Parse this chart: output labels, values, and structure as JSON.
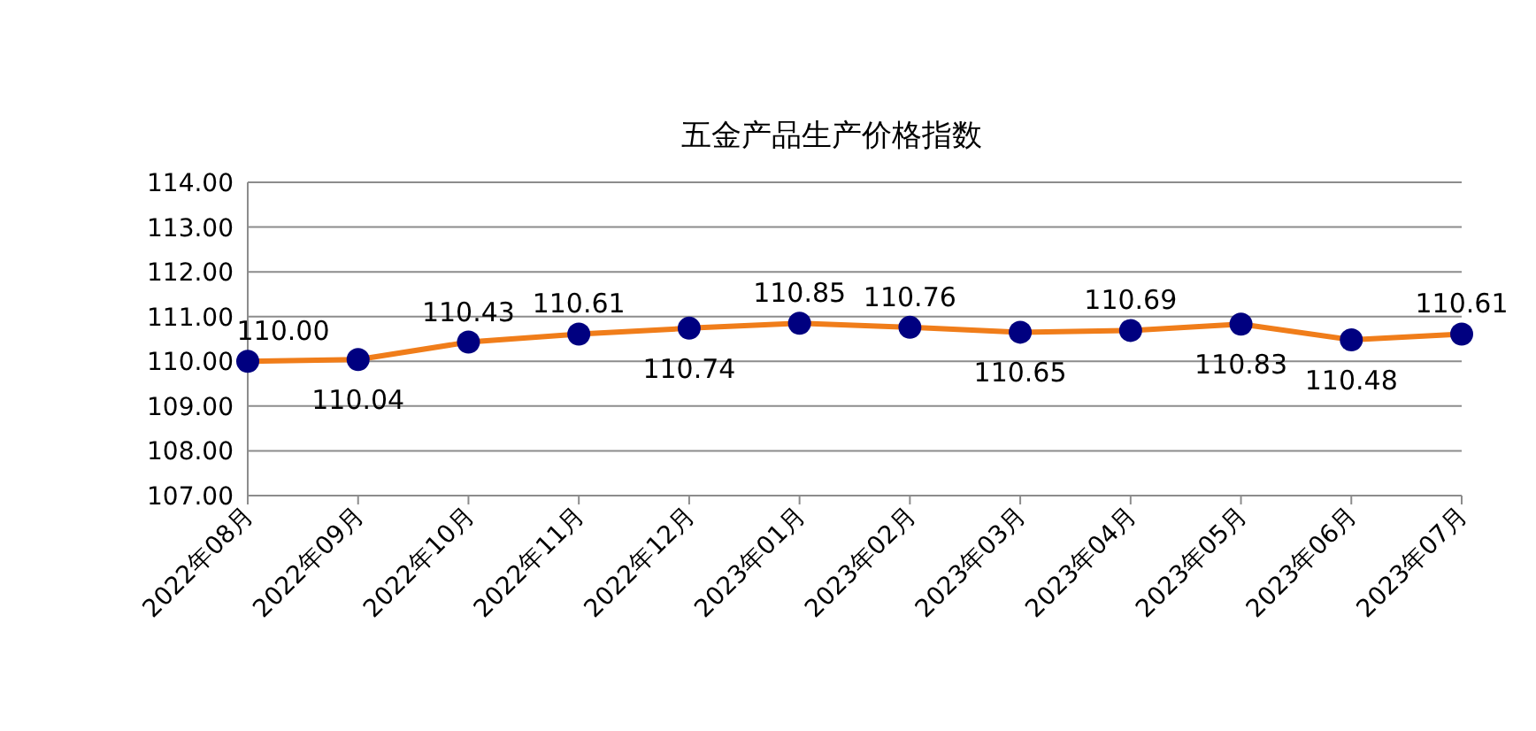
{
  "chart_data": {
    "type": "line",
    "title": "五金产品生产价格指数",
    "categories": [
      "2022年08月",
      "2022年09月",
      "2022年10月",
      "2022年11月",
      "2022年12月",
      "2023年01月",
      "2023年02月",
      "2023年03月",
      "2023年04月",
      "2023年05月",
      "2023年06月",
      "2023年07月"
    ],
    "series": [
      {
        "color": "#f07d1a",
        "colors": [
          "#000080",
          "#000080",
          "#000080",
          "#000080",
          "#000080",
          "#000080",
          "#000080",
          "#000080",
          "#000080",
          "#000080",
          "#000080",
          "#000080"
        ],
        "values": [
          110.0,
          110.04,
          110.43,
          110.61,
          110.74,
          110.85,
          110.76,
          110.65,
          110.69,
          110.83,
          110.48,
          110.61
        ],
        "value_labels": [
          "110.00",
          "110.04",
          "110.43",
          "110.61",
          "110.74",
          "110.85",
          "110.76",
          "110.65",
          "110.69",
          "110.83",
          "110.48",
          "110.61"
        ]
      }
    ],
    "marker": "circle",
    "line_style": "solid",
    "ylim": [
      107,
      114
    ],
    "yticks": [
      {
        "value": 107,
        "label": "107.00"
      },
      {
        "value": 108,
        "label": "108.00"
      },
      {
        "value": 109,
        "label": "109.00"
      },
      {
        "value": 110,
        "label": "110.00"
      },
      {
        "value": 111,
        "label": "111.00"
      },
      {
        "value": 112,
        "label": "112.00"
      },
      {
        "value": 113,
        "label": "113.00"
      },
      {
        "value": 114,
        "label": "114.00"
      }
    ],
    "grid": "y"
  }
}
